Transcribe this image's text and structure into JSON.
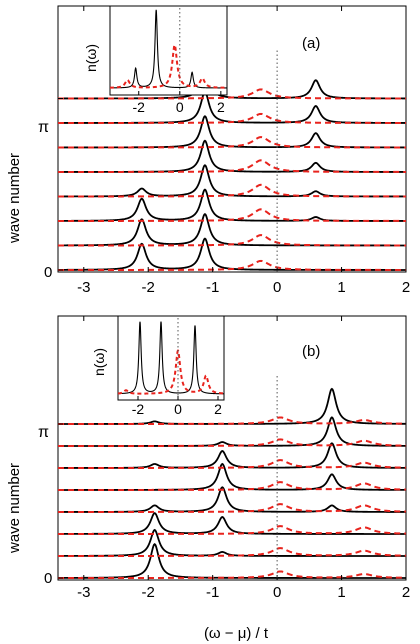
{
  "figure": {
    "xlabel": "(ω − μ) / t"
  },
  "chart_data": [
    {
      "type": "line",
      "panel_label": "(a)",
      "ylabel": "wave number",
      "xlim": [
        -3.4,
        2.0
      ],
      "xticks": [
        -3,
        -2,
        -1,
        0,
        1,
        2
      ],
      "y_tick_labels": [
        "0",
        "π"
      ],
      "fermi_level_x": 0,
      "num_traces": 8,
      "series": [
        {
          "style": "solid-black",
          "peaks_per_trace": [
            [
              {
                "x": -2.1,
                "h": 1.0
              },
              {
                "x": -1.12,
                "h": 1.2
              }
            ],
            [
              {
                "x": -2.1,
                "h": 1.0
              },
              {
                "x": -1.12,
                "h": 1.2
              }
            ],
            [
              {
                "x": -2.1,
                "h": 0.85
              },
              {
                "x": -1.12,
                "h": 1.2
              },
              {
                "x": 0.6,
                "h": 0.15
              }
            ],
            [
              {
                "x": -2.1,
                "h": 0.3
              },
              {
                "x": -1.12,
                "h": 1.2
              },
              {
                "x": 0.6,
                "h": 0.2
              }
            ],
            [
              {
                "x": -1.12,
                "h": 1.2
              },
              {
                "x": 0.6,
                "h": 0.35
              }
            ],
            [
              {
                "x": -1.12,
                "h": 1.2
              },
              {
                "x": 0.6,
                "h": 0.55
              }
            ],
            [
              {
                "x": -1.12,
                "h": 1.2
              },
              {
                "x": 0.6,
                "h": 0.65
              }
            ],
            [
              {
                "x": -1.12,
                "h": 1.1
              },
              {
                "x": 0.6,
                "h": 0.7
              }
            ]
          ]
        },
        {
          "style": "dashed-red",
          "peaks_per_trace": [
            [
              {
                "x": -0.25,
                "h": 0.35
              }
            ],
            [
              {
                "x": -0.25,
                "h": 0.4
              }
            ],
            [
              {
                "x": -0.25,
                "h": 0.45
              }
            ],
            [
              {
                "x": -0.25,
                "h": 0.45
              }
            ],
            [
              {
                "x": -0.25,
                "h": 0.45
              }
            ],
            [
              {
                "x": -0.25,
                "h": 0.4
              }
            ],
            [
              {
                "x": -0.25,
                "h": 0.35
              }
            ],
            [
              {
                "x": -0.25,
                "h": 0.35
              }
            ]
          ]
        }
      ],
      "inset": {
        "ylabel": "n(ω)",
        "xlim": [
          -3.4,
          2.3
        ],
        "xticks": [
          -2,
          0,
          2
        ],
        "solid_peaks": [
          {
            "x": -1.15,
            "h": 1.0
          },
          {
            "x": -2.15,
            "h": 0.25
          },
          {
            "x": 0.6,
            "h": 0.2
          }
        ],
        "dashed_peaks": [
          {
            "x": -0.25,
            "h": 0.55
          },
          {
            "x": -2.55,
            "h": 0.1
          },
          {
            "x": 1.1,
            "h": 0.12
          }
        ]
      }
    },
    {
      "type": "line",
      "panel_label": "(b)",
      "ylabel": "wave number",
      "xlim": [
        -3.4,
        2.0
      ],
      "xticks": [
        -3,
        -2,
        -1,
        0,
        1,
        2
      ],
      "y_tick_labels": [
        "0",
        "π"
      ],
      "fermi_level_x": 0,
      "num_traces": 8,
      "series": [
        {
          "style": "solid-black",
          "peaks_per_trace": [
            [
              {
                "x": -1.9,
                "h": 1.3
              }
            ],
            [
              {
                "x": -1.9,
                "h": 1.0
              },
              {
                "x": -0.85,
                "h": 0.15
              }
            ],
            [
              {
                "x": -1.9,
                "h": 0.8
              },
              {
                "x": -0.85,
                "h": 0.65
              }
            ],
            [
              {
                "x": -1.9,
                "h": 0.25
              },
              {
                "x": -0.85,
                "h": 0.95
              },
              {
                "x": 0.85,
                "h": 0.25
              }
            ],
            [
              {
                "x": -0.85,
                "h": 1.0
              },
              {
                "x": 0.85,
                "h": 0.6
              }
            ],
            [
              {
                "x": -1.9,
                "h": 0.15
              },
              {
                "x": -0.85,
                "h": 0.65
              },
              {
                "x": 0.85,
                "h": 0.95
              }
            ],
            [
              {
                "x": -0.85,
                "h": 0.15
              },
              {
                "x": 0.85,
                "h": 1.1
              }
            ],
            [
              {
                "x": -1.9,
                "h": 0.1
              },
              {
                "x": 0.85,
                "h": 1.35
              }
            ]
          ]
        },
        {
          "style": "dashed-red",
          "peaks_per_trace": [
            [
              {
                "x": 0.05,
                "h": 0.25
              },
              {
                "x": 1.35,
                "h": 0.15
              }
            ],
            [
              {
                "x": 0.05,
                "h": 0.3
              },
              {
                "x": 1.35,
                "h": 0.2
              }
            ],
            [
              {
                "x": 0.05,
                "h": 0.3
              },
              {
                "x": 1.35,
                "h": 0.25
              }
            ],
            [
              {
                "x": 0.05,
                "h": 0.3
              },
              {
                "x": 1.35,
                "h": 0.25
              }
            ],
            [
              {
                "x": 0.05,
                "h": 0.3
              },
              {
                "x": 1.35,
                "h": 0.25
              }
            ],
            [
              {
                "x": 0.05,
                "h": 0.3
              },
              {
                "x": 1.35,
                "h": 0.2
              }
            ],
            [
              {
                "x": 0.05,
                "h": 0.25
              },
              {
                "x": 1.35,
                "h": 0.2
              }
            ],
            [
              {
                "x": 0.05,
                "h": 0.25
              },
              {
                "x": 1.35,
                "h": 0.15
              }
            ]
          ]
        }
      ],
      "inset": {
        "ylabel": "n(ω)",
        "xlim": [
          -3.0,
          2.3
        ],
        "xticks": [
          -2,
          0,
          2
        ],
        "solid_peaks": [
          {
            "x": -1.9,
            "h": 1.0
          },
          {
            "x": -0.85,
            "h": 1.0
          },
          {
            "x": 0.85,
            "h": 0.95
          }
        ],
        "dashed_peaks": [
          {
            "x": 0.0,
            "h": 0.6
          },
          {
            "x": 1.4,
            "h": 0.25
          },
          {
            "x": -2.6,
            "h": 0.05
          }
        ]
      }
    }
  ]
}
